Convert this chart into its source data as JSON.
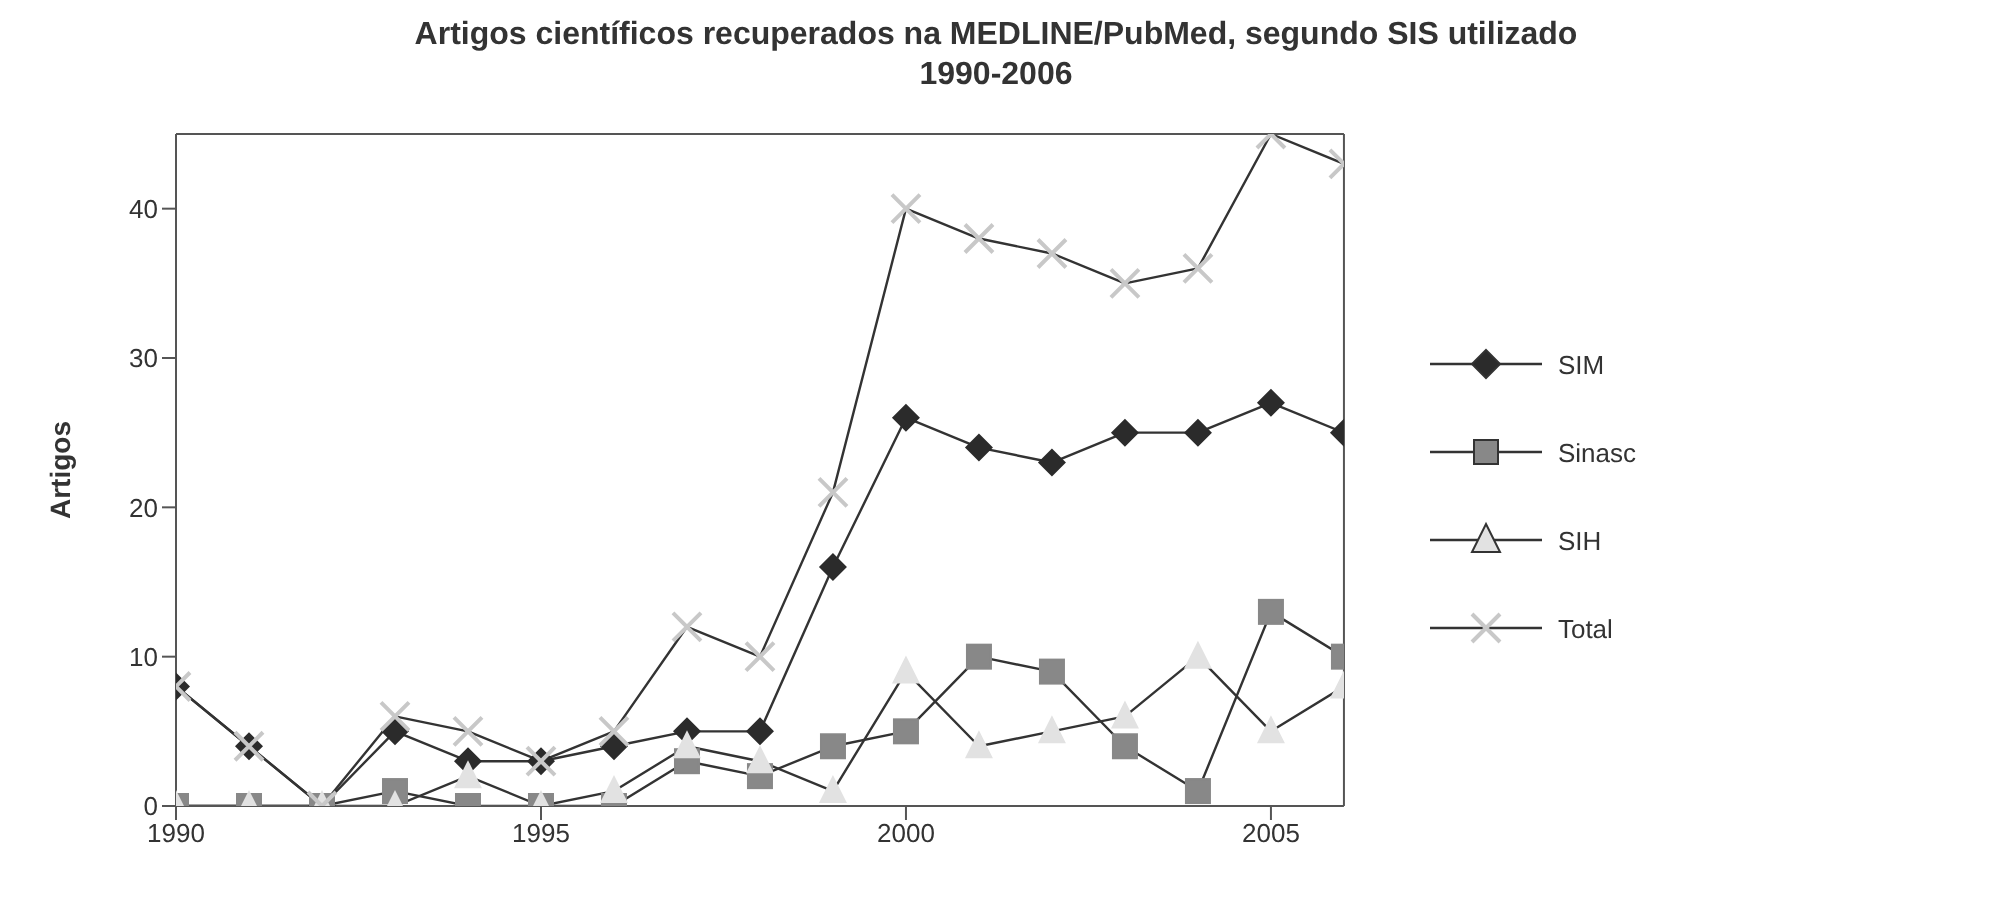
{
  "chart_data": {
    "type": "line",
    "title": "Artigos científicos recuperados na MEDLINE/PubMed, segundo SIS utilizado",
    "subtitle": "1990-2006",
    "ylabel": "Artigos",
    "x": [
      1990,
      1991,
      1992,
      1993,
      1994,
      1995,
      1996,
      1997,
      1998,
      1999,
      2000,
      2001,
      2002,
      2003,
      2004,
      2005,
      2006
    ],
    "series": [
      {
        "name": "SIM",
        "color": "#2b2b2b",
        "marker": "diamond",
        "values": [
          8,
          4,
          0,
          5,
          3,
          3,
          4,
          5,
          5,
          16,
          26,
          24,
          23,
          25,
          25,
          27,
          25
        ]
      },
      {
        "name": "Sinasc",
        "color": "#888888",
        "marker": "square",
        "values": [
          0,
          0,
          0,
          1,
          0,
          0,
          0,
          3,
          2,
          4,
          5,
          10,
          9,
          4,
          1,
          13,
          10
        ]
      },
      {
        "name": "SIH",
        "color": "#e2e2e2",
        "marker": "triangle",
        "values": [
          0,
          0,
          0,
          0,
          2,
          0,
          1,
          4,
          3,
          1,
          9,
          4,
          5,
          6,
          10,
          5,
          8
        ]
      },
      {
        "name": "Total",
        "color": "#c8c8c8",
        "marker": "cross",
        "values": [
          8,
          4,
          0,
          6,
          5,
          3,
          5,
          12,
          10,
          21,
          40,
          38,
          37,
          35,
          36,
          45,
          43
        ]
      }
    ],
    "xlim": [
      1990,
      2006
    ],
    "xticks": [
      1990,
      1995,
      2000,
      2005
    ],
    "ylim": [
      0,
      45
    ],
    "yticks": [
      0,
      10,
      20,
      30,
      40
    ],
    "grid": false,
    "legend": "right",
    "line_style": "solid"
  }
}
